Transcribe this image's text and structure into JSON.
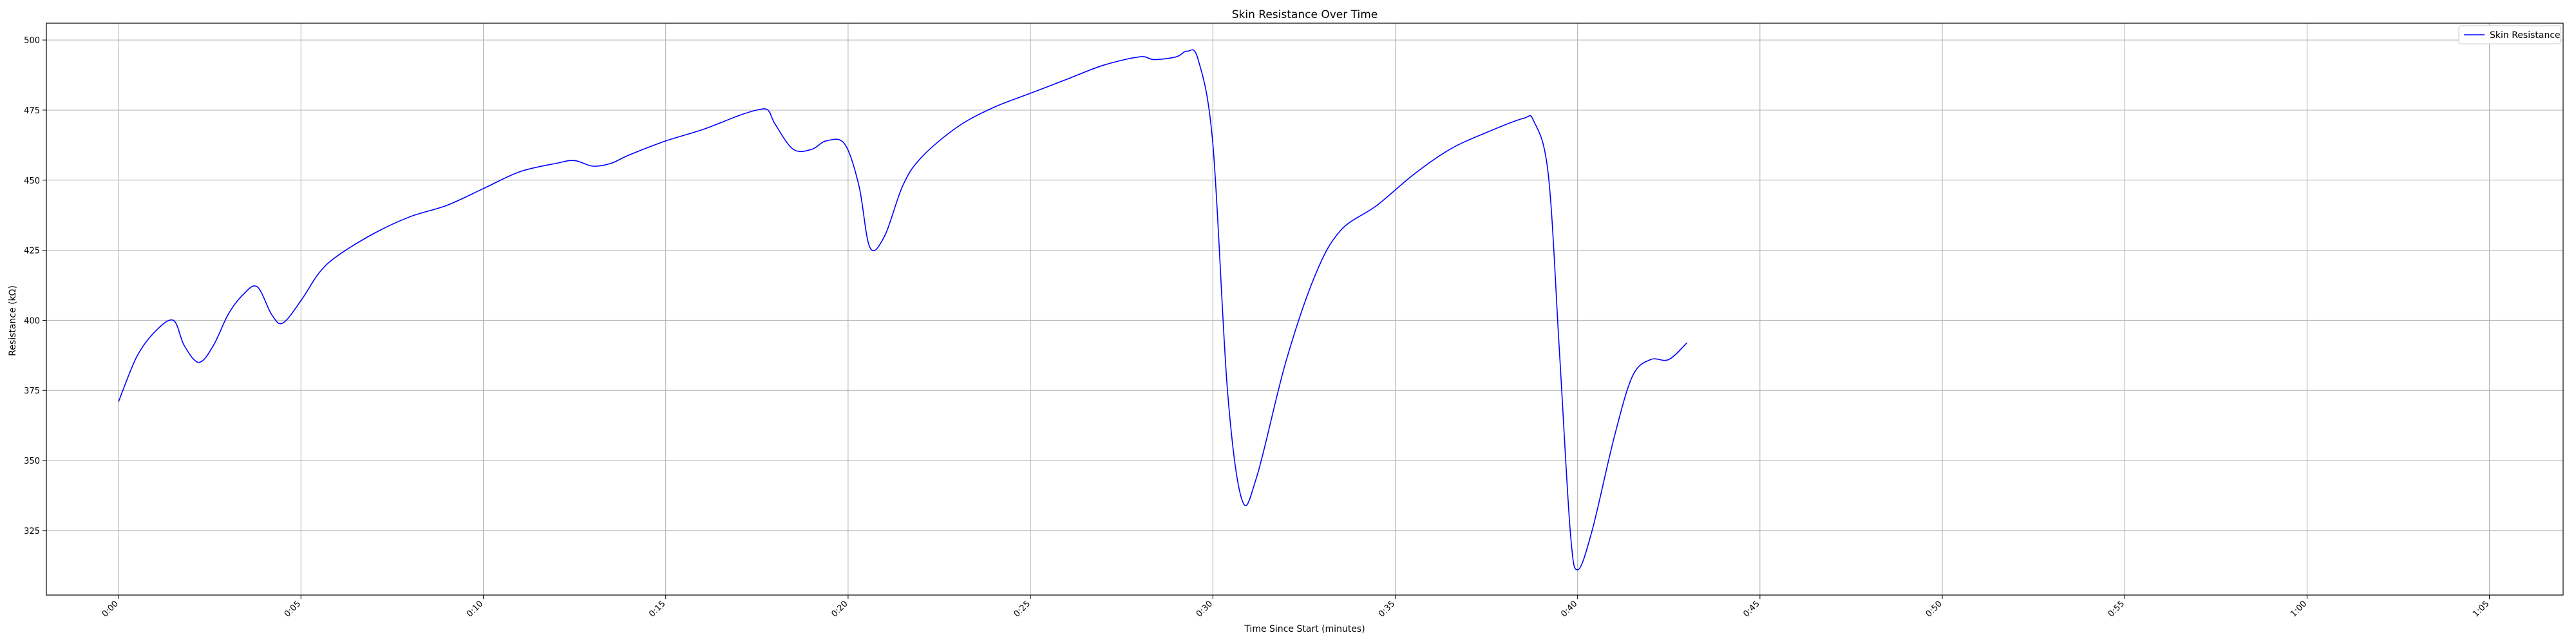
{
  "chart_data": {
    "type": "line",
    "title": "Skin Resistance Over Time",
    "xlabel": "Time Since Start (minutes)",
    "ylabel": "Resistance (kΩ)",
    "xlim": [
      -0.033,
      1.117
    ],
    "ylim": [
      302,
      506
    ],
    "grid": true,
    "legend_position": "top-right",
    "x_ticks": [
      "0:00",
      "0:05",
      "0:10",
      "0:15",
      "0:20",
      "0:25",
      "0:30",
      "0:35",
      "0:40",
      "0:45",
      "0:50",
      "0:55",
      "1:00",
      "1:05"
    ],
    "y_ticks": [
      325,
      350,
      375,
      400,
      425,
      450,
      475,
      500
    ],
    "series": [
      {
        "name": "Skin Resistance",
        "color": "#0000ff",
        "points": [
          [
            0.0,
            371
          ],
          [
            0.0083,
            387
          ],
          [
            0.0167,
            396
          ],
          [
            0.025,
            400
          ],
          [
            0.03,
            391
          ],
          [
            0.0367,
            385
          ],
          [
            0.0433,
            391
          ],
          [
            0.05,
            402
          ],
          [
            0.0567,
            409
          ],
          [
            0.0633,
            412
          ],
          [
            0.07,
            402
          ],
          [
            0.075,
            399
          ],
          [
            0.0833,
            407
          ],
          [
            0.0917,
            417
          ],
          [
            0.1,
            423
          ],
          [
            0.1167,
            431
          ],
          [
            0.1333,
            437
          ],
          [
            0.15,
            441
          ],
          [
            0.1667,
            447
          ],
          [
            0.1833,
            453
          ],
          [
            0.2,
            456
          ],
          [
            0.2083,
            457
          ],
          [
            0.2167,
            455
          ],
          [
            0.225,
            456
          ],
          [
            0.2333,
            459
          ],
          [
            0.25,
            464
          ],
          [
            0.2667,
            468
          ],
          [
            0.2833,
            473
          ],
          [
            0.2917,
            475
          ],
          [
            0.2967,
            475
          ],
          [
            0.3,
            470
          ],
          [
            0.3083,
            461
          ],
          [
            0.3167,
            461
          ],
          [
            0.3233,
            464
          ],
          [
            0.3317,
            463
          ],
          [
            0.3383,
            448
          ],
          [
            0.3433,
            426
          ],
          [
            0.35,
            430
          ],
          [
            0.3583,
            448
          ],
          [
            0.3667,
            458
          ],
          [
            0.3833,
            469
          ],
          [
            0.4,
            476
          ],
          [
            0.4167,
            481
          ],
          [
            0.4333,
            486
          ],
          [
            0.45,
            491
          ],
          [
            0.4667,
            494
          ],
          [
            0.4733,
            493
          ],
          [
            0.4833,
            494
          ],
          [
            0.4883,
            496
          ],
          [
            0.4933,
            493
          ],
          [
            0.5,
            463
          ],
          [
            0.5067,
            375
          ],
          [
            0.5133,
            336
          ],
          [
            0.52,
            344
          ],
          [
            0.5333,
            385
          ],
          [
            0.5467,
            416
          ],
          [
            0.5583,
            432
          ],
          [
            0.575,
            441
          ],
          [
            0.5917,
            452
          ],
          [
            0.6083,
            461
          ],
          [
            0.625,
            467
          ],
          [
            0.6417,
            472
          ],
          [
            0.6467,
            471
          ],
          [
            0.6533,
            452
          ],
          [
            0.6583,
            390
          ],
          [
            0.6633,
            325
          ],
          [
            0.6667,
            311
          ],
          [
            0.6733,
            325
          ],
          [
            0.6833,
            358
          ],
          [
            0.6917,
            380
          ],
          [
            0.7,
            386
          ],
          [
            0.7083,
            386
          ],
          [
            0.7167,
            392
          ]
        ]
      }
    ]
  }
}
